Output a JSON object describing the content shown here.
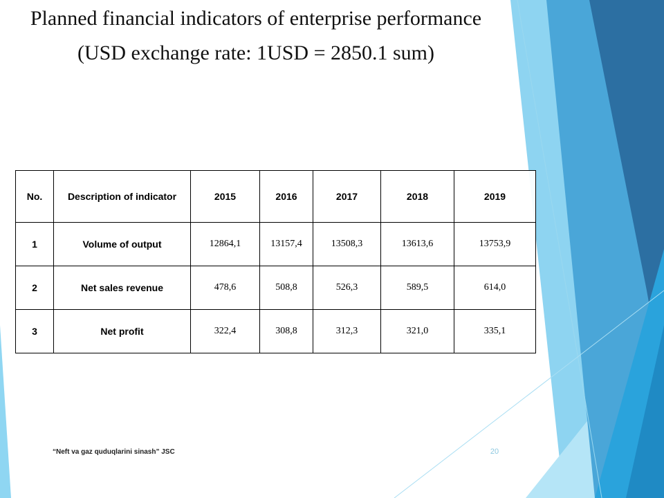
{
  "slide": {
    "title_line1": "Planned financial indicators of enterprise performance",
    "title_line2": "(USD exchange rate: 1USD = 2850.1 sum)",
    "footer": "“Neft va gaz quduqlarini sinash” JSC",
    "page_number": "20"
  },
  "table": {
    "headers": [
      "No.",
      "Description of indicator",
      "2015",
      "2016",
      "2017",
      "2018",
      "2019"
    ],
    "rows": [
      {
        "no": "1",
        "description": "Volume of output",
        "values": [
          "12864,1",
          "13157,4",
          "13508,3",
          "13613,6",
          "13753,9"
        ]
      },
      {
        "no": "2",
        "description": "Net sales revenue",
        "values": [
          "478,6",
          "508,8",
          "526,3",
          "589,5",
          "614,0"
        ]
      },
      {
        "no": "3",
        "description": "Net profit",
        "values": [
          "322,4",
          "308,8",
          "312,3",
          "321,0",
          "335,1"
        ]
      }
    ]
  },
  "theme": {
    "accent_dark": "#2e6fa3",
    "accent_mid": "#3b9fd8",
    "accent_light": "#7fd0ee"
  }
}
